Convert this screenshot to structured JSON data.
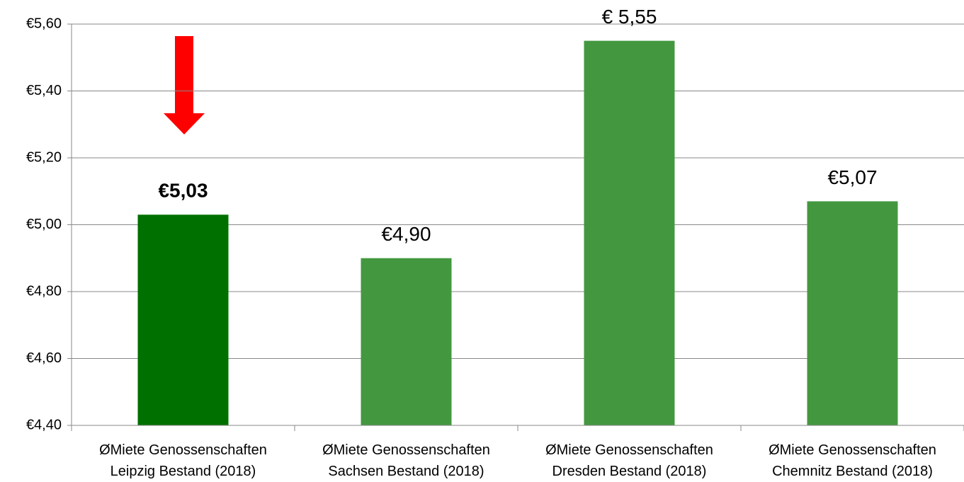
{
  "chart_data": {
    "type": "bar",
    "categories": [
      "ØMiete Genossenschaften Leipzig Bestand (2018)",
      "ØMiete Genossenschaften Sachsen Bestand (2018)",
      "ØMiete Genossenschaften Dresden Bestand (2018)",
      "ØMiete Genossenschaften Chemnitz Bestand (2018)"
    ],
    "values": [
      5.03,
      4.9,
      5.55,
      5.07
    ],
    "value_labels": [
      "€5,03",
      "€4,90",
      "€ 5,55",
      "€5,07"
    ],
    "colors": [
      "#007000",
      "#43983f",
      "#43983f",
      "#43983f"
    ],
    "ylim": [
      4.4,
      5.6
    ],
    "yticks": [
      {
        "value": 4.4,
        "label": "€4,40"
      },
      {
        "value": 4.6,
        "label": "€4,60"
      },
      {
        "value": 4.8,
        "label": "€4,80"
      },
      {
        "value": 5.0,
        "label": "€5,00"
      },
      {
        "value": 5.2,
        "label": "€5,20"
      },
      {
        "value": 5.4,
        "label": "€5,40"
      },
      {
        "value": 5.6,
        "label": "€5,60"
      }
    ],
    "grid": true
  }
}
